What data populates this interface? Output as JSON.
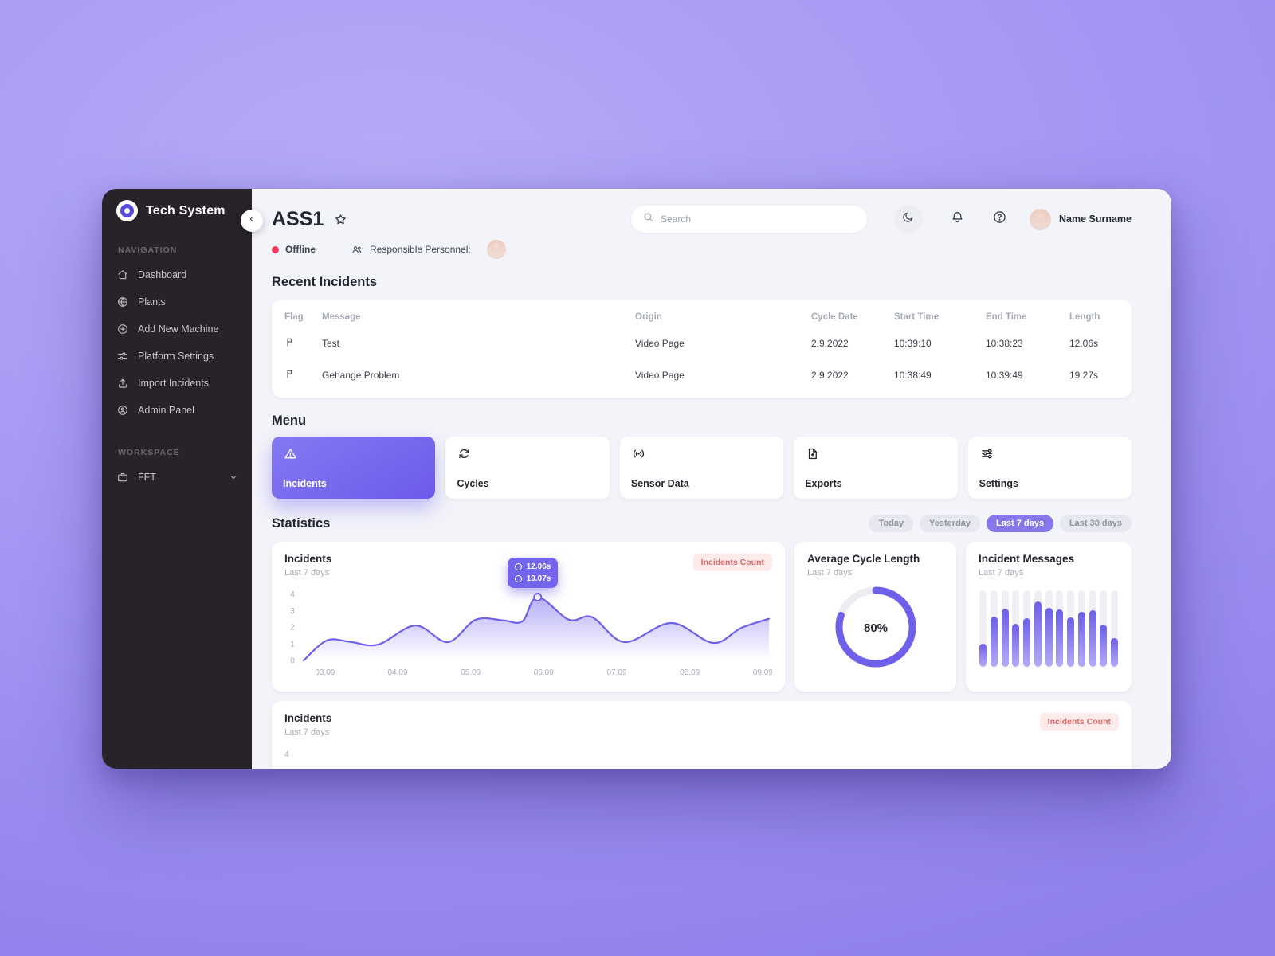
{
  "app": {
    "name": "Tech System"
  },
  "colors": {
    "accent": "#6E60E8",
    "accent_chip": "#8478EA",
    "sidebar_bg": "#272329",
    "main_bg": "#F3F4F9",
    "offline_red": "#F23B5F",
    "badge_bg": "#FDEAEA",
    "badge_text": "#E06C6C"
  },
  "sidebar": {
    "sections": [
      {
        "label": "NAVIGATION",
        "items": [
          {
            "icon": "home-icon",
            "label": "Dashboard"
          },
          {
            "icon": "globe-icon",
            "label": "Plants"
          },
          {
            "icon": "plus-circle-icon",
            "label": "Add New Machine"
          },
          {
            "icon": "sliders-icon",
            "label": "Platform Settings"
          },
          {
            "icon": "upload-icon",
            "label": "Import Incidents"
          },
          {
            "icon": "user-circle-icon",
            "label": "Admin Panel"
          }
        ]
      },
      {
        "label": "WORKSPACE",
        "items": [
          {
            "icon": "briefcase-icon",
            "label": "FFT",
            "expandable": true
          }
        ]
      }
    ]
  },
  "header": {
    "title": "ASS1",
    "status": {
      "label": "Offline"
    },
    "personnel_label": "Responsible Personnel:",
    "search": {
      "placeholder": "Search"
    },
    "user": {
      "name": "Name Surname"
    }
  },
  "recent_incidents": {
    "heading": "Recent Incidents",
    "columns": [
      "Flag",
      "Message",
      "Origin",
      "Cycle Date",
      "Start Time",
      "End Time",
      "Length"
    ],
    "rows": [
      {
        "message": "Test",
        "origin": "Video Page",
        "cycle_date": "2.9.2022",
        "start_time": "10:39:10",
        "end_time": "10:38:23",
        "length": "12.06s"
      },
      {
        "message": "Gehange Problem",
        "origin": "Video Page",
        "cycle_date": "2.9.2022",
        "start_time": "10:38:49",
        "end_time": "10:39:49",
        "length": "19.27s"
      }
    ]
  },
  "menu": {
    "heading": "Menu",
    "items": [
      {
        "icon": "warning-triangle-icon",
        "label": "Incidents",
        "active": true
      },
      {
        "icon": "refresh-icon",
        "label": "Cycles",
        "active": false
      },
      {
        "icon": "signal-icon",
        "label": "Sensor Data",
        "active": false
      },
      {
        "icon": "file-export-icon",
        "label": "Exports",
        "active": false
      },
      {
        "icon": "settings-sliders-icon",
        "label": "Settings",
        "active": false
      }
    ]
  },
  "statistics": {
    "heading": "Statistics",
    "filters": [
      {
        "label": "Today",
        "active": false
      },
      {
        "label": "Yesterday",
        "active": false
      },
      {
        "label": "Last 7 days",
        "active": true
      },
      {
        "label": "Last 30 days",
        "active": false
      }
    ]
  },
  "chart_data": [
    {
      "id": "incidents-area",
      "type": "area",
      "title": "Incidents",
      "subtitle": "Last 7 days",
      "badge": "Incidents Count",
      "grid": false,
      "legend_position": "top-right",
      "x_ticks": [
        "03.09",
        "04.09",
        "05.09",
        "06.09",
        "07.09",
        "08.09",
        "09.09"
      ],
      "x_tick_fx": [
        4.6,
        20.2,
        35.9,
        51.6,
        67.3,
        83.0,
        98.7
      ],
      "y_ticks": [
        0,
        1,
        2,
        3,
        4
      ],
      "ylim": [
        0,
        4.4
      ],
      "points": [
        [
          0,
          0
        ],
        [
          5,
          1.2
        ],
        [
          10,
          1.12
        ],
        [
          16,
          0.95
        ],
        [
          24,
          2.1
        ],
        [
          31,
          1.1
        ],
        [
          37,
          2.45
        ],
        [
          43,
          2.4
        ],
        [
          47,
          2.35
        ],
        [
          50.3,
          3.8
        ],
        [
          57,
          2.45
        ],
        [
          62,
          2.6
        ],
        [
          69,
          1.1
        ],
        [
          79,
          2.25
        ],
        [
          88,
          1.05
        ],
        [
          94,
          1.95
        ],
        [
          100,
          2.5
        ]
      ],
      "highlight": {
        "fx": 50.3,
        "value": 3.8,
        "tooltip": [
          "12.06s",
          "19.07s"
        ]
      }
    },
    {
      "id": "avg-cycle-donut",
      "type": "pie",
      "title": "Average Cycle Length",
      "subtitle": "Last 7 days",
      "value_pct": 80,
      "value_label": "80%"
    },
    {
      "id": "incident-messages-bars",
      "type": "bar",
      "title": "Incident Messages",
      "subtitle": "Last 7 days",
      "values_pct": [
        30,
        66,
        76,
        56,
        64,
        85,
        77,
        75,
        65,
        72,
        74,
        55,
        38
      ]
    },
    {
      "id": "incidents-area-2",
      "type": "area",
      "title": "Incidents",
      "subtitle": "Last 7 days",
      "badge": "Incidents Count",
      "y_first_tick": "4",
      "partially_visible": true
    }
  ]
}
